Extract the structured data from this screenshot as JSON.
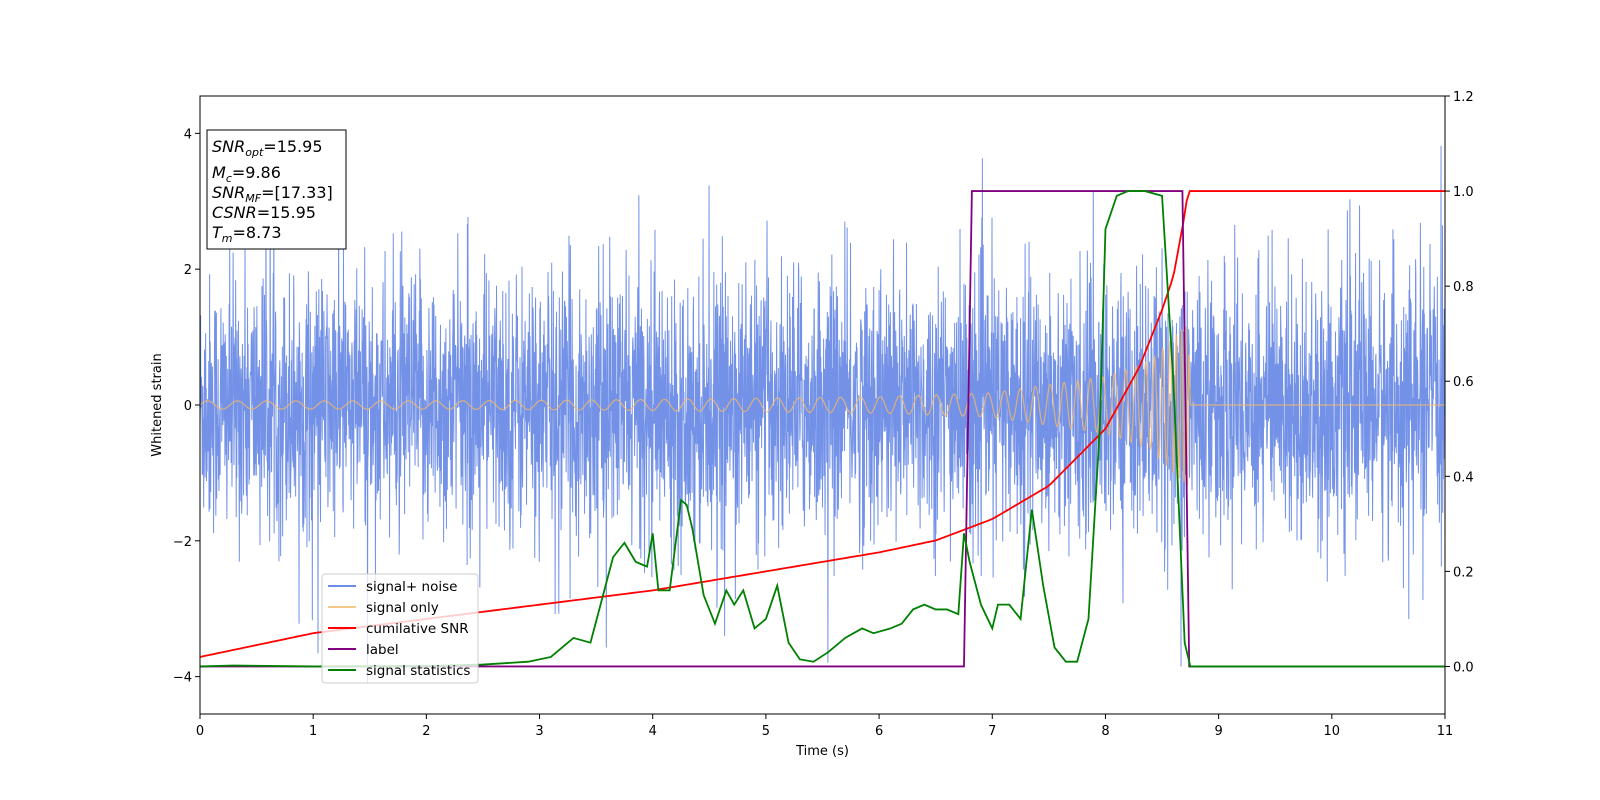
{
  "chart_data": {
    "type": "line",
    "xlabel": "Time (s)",
    "ylabel": "Whitened strain",
    "xlim": [
      0,
      11
    ],
    "ylim": [
      -4.55,
      4.55
    ],
    "y2lim": [
      -0.1,
      1.2
    ],
    "xticks": [
      "0",
      "1",
      "2",
      "3",
      "4",
      "5",
      "6",
      "7",
      "8",
      "9",
      "10",
      "11"
    ],
    "yticks": [
      "−4",
      "−2",
      "0",
      "2",
      "4"
    ],
    "y2ticks": [
      "0.0",
      "0.2",
      "0.4",
      "0.6",
      "0.8",
      "1.0",
      "1.2"
    ],
    "grid": false,
    "legend_position": "lower-left",
    "annotation_position": "upper-left",
    "annotation": [
      {
        "name": "SNR",
        "sub": "opt",
        "value": "=15.95"
      },
      {
        "name": "M",
        "sub": "c",
        "value": "=9.86"
      },
      {
        "name": "SNR",
        "sub": "MF",
        "value": "=[17.33]"
      },
      {
        "name": "CSNR",
        "sub": "",
        "value": "=15.95"
      },
      {
        "name": "T",
        "sub": "m",
        "value": "=8.73"
      }
    ],
    "series": [
      {
        "name": "signal+ noise",
        "axis": "left",
        "color": "#6c8ce6",
        "description": "whitened strain noise, roughly N(0,1) with spikes to about +-3.5 across 0-11 s"
      },
      {
        "name": "signal only",
        "axis": "left",
        "color": "#f2b66b",
        "envelope_t": [
          0,
          2,
          4,
          6,
          7,
          8,
          8.4,
          8.6,
          8.73,
          8.75,
          11
        ],
        "envelope_amp": [
          0.06,
          0.06,
          0.08,
          0.12,
          0.18,
          0.42,
          0.65,
          1.0,
          1.2,
          0,
          0
        ]
      },
      {
        "name": "cumilative SNR",
        "axis": "right",
        "color": "#ff0000",
        "t": [
          0,
          1,
          2,
          3,
          4,
          5,
          6,
          6.5,
          7,
          7.5,
          8,
          8.3,
          8.5,
          8.6,
          8.7,
          8.73,
          8.77,
          11
        ],
        "v": [
          0.02,
          0.07,
          0.1,
          0.13,
          0.16,
          0.2,
          0.24,
          0.265,
          0.31,
          0.38,
          0.5,
          0.63,
          0.75,
          0.82,
          0.95,
          1.0,
          1.0,
          1.0
        ]
      },
      {
        "name": "label",
        "axis": "right",
        "color": "#800080",
        "t": [
          0,
          6.75,
          6.82,
          8.68,
          8.74,
          11
        ],
        "v": [
          0,
          0,
          1,
          1,
          0,
          0
        ]
      },
      {
        "name": "signal statistics",
        "axis": "right",
        "color": "#008000",
        "t": [
          0,
          0.3,
          1,
          2,
          2.5,
          2.9,
          3.1,
          3.2,
          3.3,
          3.45,
          3.55,
          3.65,
          3.75,
          3.85,
          3.95,
          4.0,
          4.05,
          4.15,
          4.25,
          4.3,
          4.35,
          4.45,
          4.55,
          4.65,
          4.72,
          4.8,
          4.9,
          5.0,
          5.1,
          5.2,
          5.3,
          5.42,
          5.55,
          5.7,
          5.85,
          5.95,
          6.1,
          6.2,
          6.3,
          6.4,
          6.5,
          6.6,
          6.7,
          6.75,
          6.8,
          6.9,
          7.0,
          7.05,
          7.15,
          7.25,
          7.35,
          7.45,
          7.55,
          7.65,
          7.75,
          7.85,
          7.95,
          8.0,
          8.1,
          8.2,
          8.35,
          8.5,
          8.6,
          8.7,
          8.75,
          9,
          11
        ],
        "v": [
          0,
          0.002,
          0,
          0.001,
          0.004,
          0.01,
          0.02,
          0.04,
          0.06,
          0.05,
          0.14,
          0.23,
          0.26,
          0.22,
          0.21,
          0.28,
          0.16,
          0.16,
          0.35,
          0.34,
          0.29,
          0.15,
          0.09,
          0.16,
          0.13,
          0.16,
          0.08,
          0.1,
          0.17,
          0.05,
          0.015,
          0.01,
          0.03,
          0.06,
          0.08,
          0.07,
          0.08,
          0.09,
          0.12,
          0.13,
          0.12,
          0.12,
          0.11,
          0.28,
          0.22,
          0.13,
          0.08,
          0.13,
          0.13,
          0.1,
          0.33,
          0.17,
          0.04,
          0.01,
          0.01,
          0.1,
          0.5,
          0.92,
          0.99,
          1.0,
          1.0,
          0.99,
          0.6,
          0.05,
          0.0,
          0.0,
          0.0
        ]
      }
    ]
  }
}
